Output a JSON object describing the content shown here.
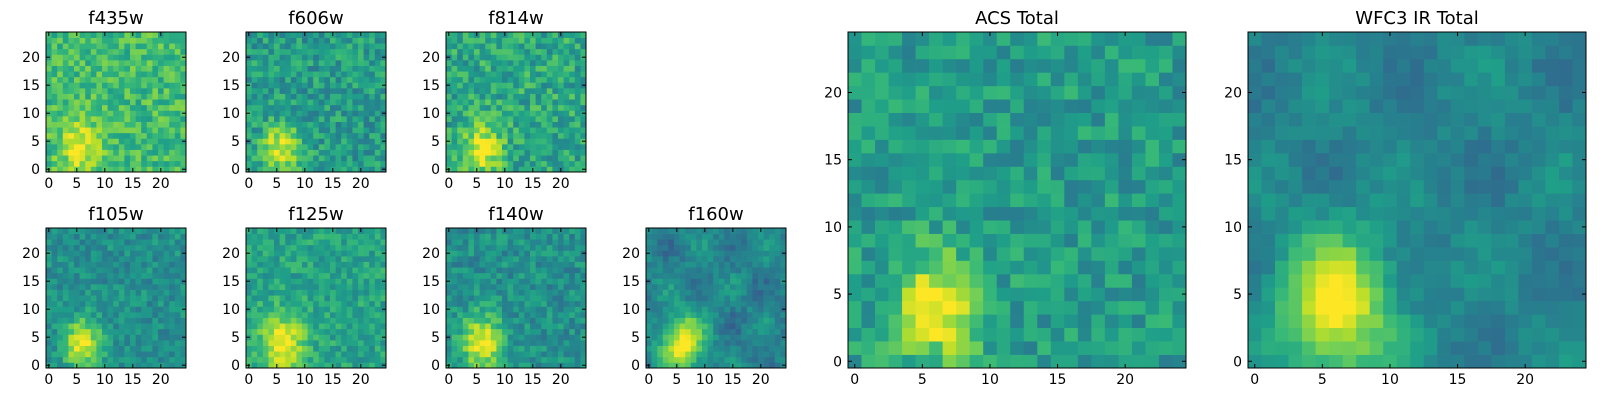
{
  "chart_data": {
    "type": "heatmap",
    "colormap": "viridis",
    "colormap_stops": [
      "#440154",
      "#482878",
      "#3e4989",
      "#31688e",
      "#26828e",
      "#1f9e89",
      "#35b779",
      "#6ece58",
      "#b5de2b",
      "#fde725"
    ],
    "grid_size": [
      25,
      25
    ],
    "source_center": {
      "x": 6,
      "y": 4
    },
    "panels": [
      {
        "title": "f435w",
        "xlim": [
          0,
          24
        ],
        "ylim": [
          0,
          24
        ],
        "xticks": [
          0,
          5,
          10,
          15,
          20
        ],
        "yticks": [
          0,
          5,
          10,
          15,
          20
        ],
        "background": 0.68,
        "noise": 0.14,
        "peak": 0.28,
        "sigma": 3.0
      },
      {
        "title": "f606w",
        "xlim": [
          0,
          24
        ],
        "ylim": [
          0,
          24
        ],
        "xticks": [
          0,
          5,
          10,
          15,
          20
        ],
        "yticks": [
          0,
          5,
          10,
          15,
          20
        ],
        "background": 0.55,
        "noise": 0.15,
        "peak": 0.42,
        "sigma": 2.6
      },
      {
        "title": "f814w",
        "xlim": [
          0,
          24
        ],
        "ylim": [
          0,
          24
        ],
        "xticks": [
          0,
          5,
          10,
          15,
          20
        ],
        "yticks": [
          0,
          5,
          10,
          15,
          20
        ],
        "background": 0.6,
        "noise": 0.16,
        "peak": 0.4,
        "sigma": 2.6
      },
      {
        "title": "f105w",
        "xlim": [
          0,
          24
        ],
        "ylim": [
          0,
          24
        ],
        "xticks": [
          0,
          5,
          10,
          15,
          20
        ],
        "yticks": [
          0,
          5,
          10,
          15,
          20
        ],
        "background": 0.5,
        "noise": 0.11,
        "peak": 0.48,
        "sigma": 2.6
      },
      {
        "title": "f125w",
        "xlim": [
          0,
          24
        ],
        "ylim": [
          0,
          24
        ],
        "xticks": [
          0,
          5,
          10,
          15,
          20
        ],
        "yticks": [
          0,
          5,
          10,
          15,
          20
        ],
        "background": 0.58,
        "noise": 0.12,
        "peak": 0.42,
        "sigma": 3.2
      },
      {
        "title": "f140w",
        "xlim": [
          0,
          24
        ],
        "ylim": [
          0,
          24
        ],
        "xticks": [
          0,
          5,
          10,
          15,
          20
        ],
        "yticks": [
          0,
          5,
          10,
          15,
          20
        ],
        "background": 0.5,
        "noise": 0.12,
        "peak": 0.48,
        "sigma": 3.0
      },
      {
        "title": "f160w",
        "xlim": [
          0,
          24
        ],
        "ylim": [
          0,
          24
        ],
        "xticks": [
          0,
          5,
          10,
          15,
          20
        ],
        "yticks": [
          0,
          5,
          10,
          15,
          20
        ],
        "background": 0.45,
        "noise": 0.12,
        "peak": 0.55,
        "sigma": 3.0
      },
      {
        "title": "ACS Total",
        "xlim": [
          0,
          24
        ],
        "ylim": [
          0,
          24
        ],
        "xticks": [
          0,
          5,
          10,
          15,
          20
        ],
        "yticks": [
          0,
          5,
          10,
          15,
          20
        ],
        "background": 0.55,
        "noise": 0.13,
        "peak": 0.45,
        "sigma": 2.4
      },
      {
        "title": "WFC3 IR Total",
        "xlim": [
          0,
          24
        ],
        "ylim": [
          0,
          24
        ],
        "xticks": [
          0,
          5,
          10,
          15,
          20
        ],
        "yticks": [
          0,
          5,
          10,
          15,
          20
        ],
        "background": 0.45,
        "noise": 0.09,
        "peak": 0.55,
        "sigma": 3.2
      }
    ]
  }
}
